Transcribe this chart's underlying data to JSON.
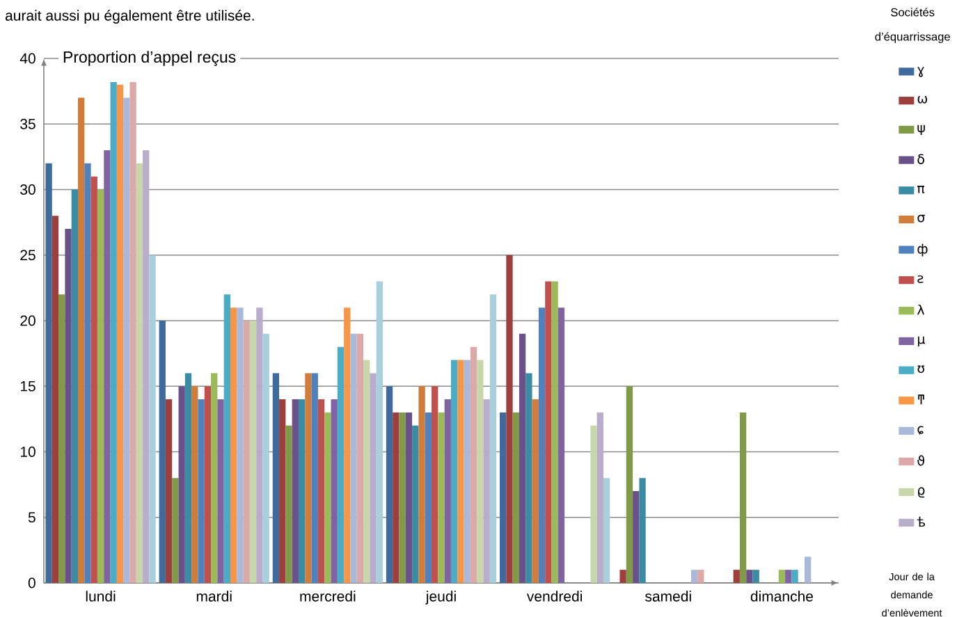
{
  "chart_data": {
    "type": "bar",
    "annotations": [
      "aurait aussi pu également être utilisée."
    ],
    "ylabel": "Proportion d’appel reçus",
    "xlabel": "Jour de la demande d’enlèvement",
    "legend_title": "Sociétés d’équarrissage",
    "categories": [
      "lundi",
      "mardi",
      "mercredi",
      "jeudi",
      "vendredi",
      "samedi",
      "dimanche"
    ],
    "series": [
      {
        "name": "ɣ",
        "color": "#3f6a9c",
        "values": [
          32,
          20,
          16,
          15,
          13,
          0,
          0
        ]
      },
      {
        "name": "ω",
        "color": "#9c3f3d",
        "values": [
          28,
          14,
          14,
          13,
          25,
          1,
          1
        ]
      },
      {
        "name": "ψ",
        "color": "#809a48",
        "values": [
          22,
          8,
          12,
          13,
          13,
          15,
          13
        ]
      },
      {
        "name": "δ",
        "color": "#6a5189",
        "values": [
          27,
          15,
          14,
          13,
          19,
          7,
          1
        ]
      },
      {
        "name": "π",
        "color": "#3a8ba4",
        "values": [
          30,
          16,
          14,
          12,
          16,
          8,
          1
        ]
      },
      {
        "name": "σ",
        "color": "#d07c3a",
        "values": [
          37,
          15,
          16,
          15,
          14,
          0,
          0
        ]
      },
      {
        "name": "ф",
        "color": "#4f81bd",
        "values": [
          32,
          14,
          16,
          13,
          21,
          0,
          0
        ]
      },
      {
        "name": "ƨ",
        "color": "#c0504d",
        "values": [
          31,
          15,
          14,
          15,
          23,
          0,
          0
        ]
      },
      {
        "name": "λ",
        "color": "#9bbb59",
        "values": [
          30,
          16,
          13,
          13,
          23,
          0,
          1
        ]
      },
      {
        "name": "μ",
        "color": "#8064a2",
        "values": [
          33,
          14,
          14,
          14,
          21,
          0,
          1
        ]
      },
      {
        "name": "ʊ",
        "color": "#4bacc6",
        "values": [
          38.2,
          22,
          18,
          17,
          0,
          0,
          1
        ]
      },
      {
        "name": "ͳ",
        "color": "#f79646",
        "values": [
          38,
          21,
          21,
          17,
          0,
          0,
          0
        ]
      },
      {
        "name": "ɕ",
        "color": "#aab9d9",
        "values": [
          37,
          21,
          19,
          17,
          0,
          1,
          2
        ]
      },
      {
        "name": "ϑ",
        "color": "#dba9a8",
        "values": [
          38.2,
          20,
          19,
          18,
          0,
          1,
          0
        ]
      },
      {
        "name": "ϱ",
        "color": "#c8d7ab",
        "values": [
          32,
          20,
          17,
          17,
          12,
          0,
          0
        ]
      },
      {
        "name": "ѣ",
        "color": "#b9adcb",
        "values": [
          33,
          21,
          16,
          14,
          13,
          0,
          0
        ]
      },
      {
        "color": "#a9cfdd",
        "values": [
          25,
          19,
          23,
          22,
          8,
          0,
          0
        ]
      }
    ],
    "ylim": [
      0,
      40
    ],
    "yticks": [
      0,
      5,
      10,
      15,
      20,
      25,
      30,
      35,
      40
    ],
    "grid": "y",
    "legend": "right"
  }
}
